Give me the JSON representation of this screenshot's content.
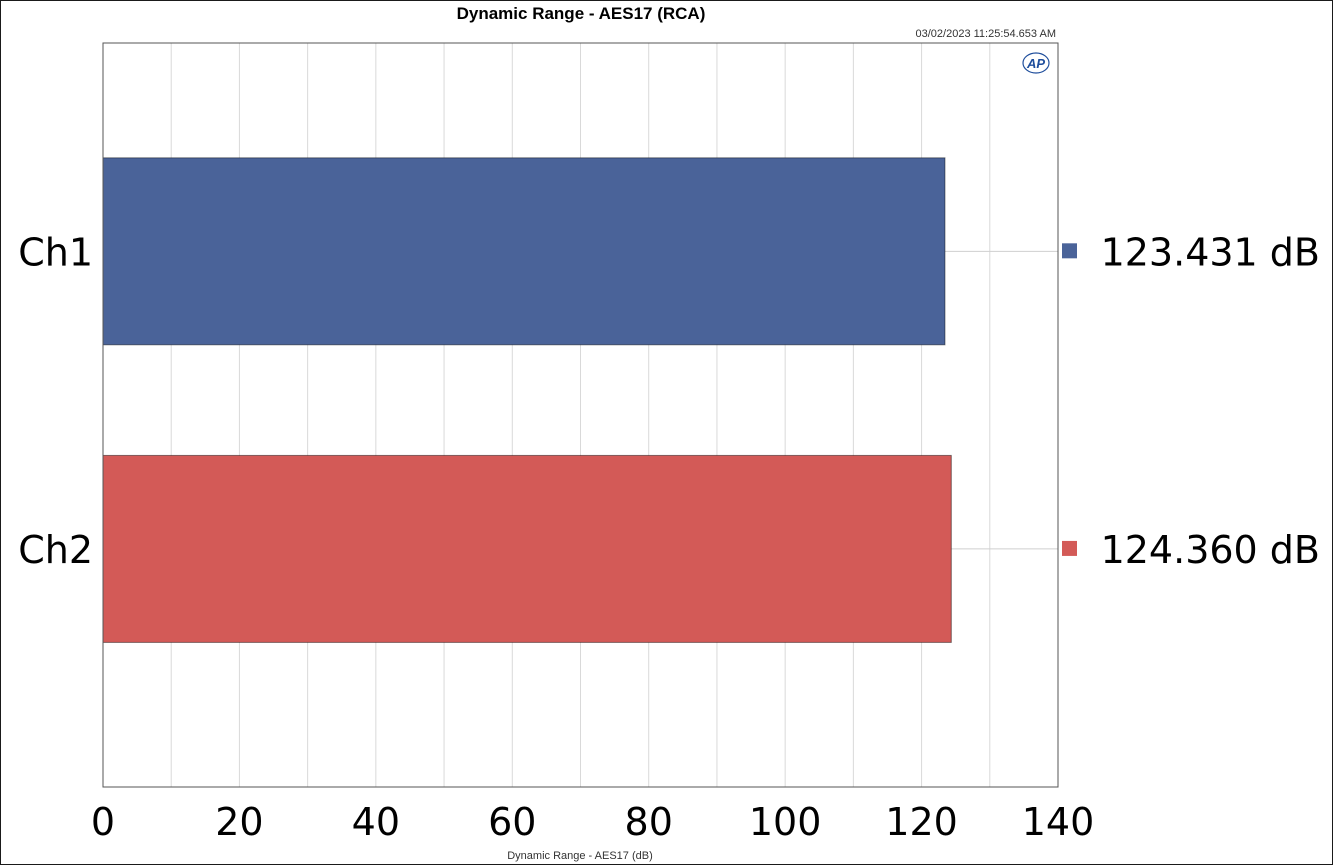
{
  "chart_data": {
    "type": "bar",
    "orientation": "horizontal",
    "title": "Dynamic Range - AES17 (RCA)",
    "timestamp": "03/02/2023 11:25:54.653 AM",
    "xlabel": "Dynamic Range - AES17 (dB)",
    "xlim": [
      0,
      140
    ],
    "x_ticks": [
      "0",
      "20",
      "40",
      "60",
      "80",
      "100",
      "120",
      "140"
    ],
    "grid": true,
    "categories": [
      "Ch1",
      "Ch2"
    ],
    "values": [
      123.431,
      124.36
    ],
    "value_labels": [
      "123.431  dB",
      "124.360  dB"
    ],
    "colors": [
      "#4a6399",
      "#d35a57"
    ],
    "logo": "AP"
  }
}
